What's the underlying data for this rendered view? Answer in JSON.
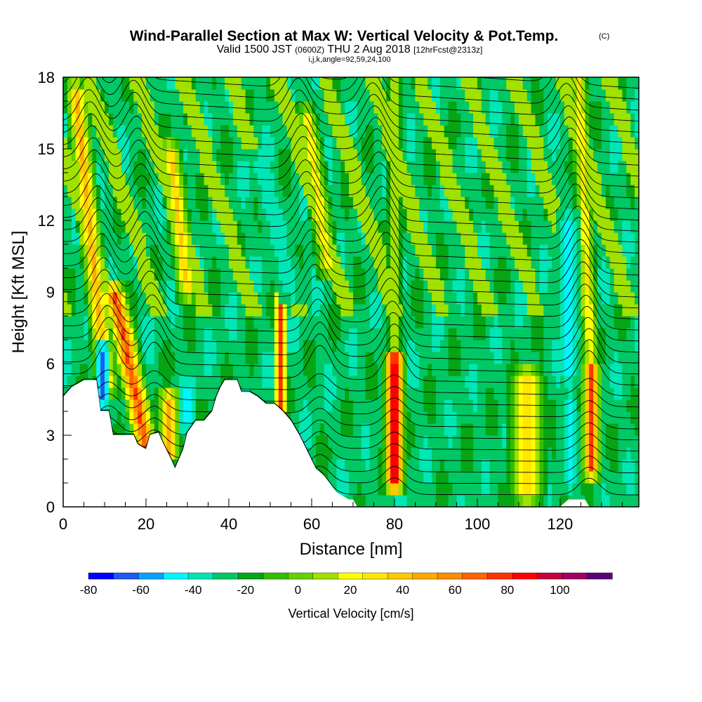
{
  "title": {
    "main": "Wind-Parallel Section at Max W: Vertical Velocity & Pot.Temp.",
    "copyright": "(C)",
    "valid_prefix": "Valid 1500 JST",
    "valid_z": "(0600Z)",
    "valid_date": "THU 2 Aug 2018",
    "forecast": "[12hrFcst@2313z]",
    "indices": "i,j,k,angle=92,59,24,100"
  },
  "chart_data": {
    "type": "heatmap",
    "xlabel": "Distance [nm]",
    "ylabel": "Height [Kft MSL]",
    "xlim": [
      0,
      139
    ],
    "ylim": [
      0,
      18
    ],
    "x_ticks": [
      0,
      20,
      40,
      60,
      80,
      100,
      120
    ],
    "y_ticks": [
      0,
      3,
      6,
      9,
      12,
      15,
      18
    ],
    "x_tick_labels": [
      "0",
      "20",
      "40",
      "60",
      "80",
      "100",
      "120"
    ],
    "y_tick_labels": [
      "0",
      "3",
      "6",
      "9",
      "12",
      "15",
      "18"
    ],
    "grid": false,
    "background_level": 5,
    "updraft_bands": [
      {
        "x_base": 20,
        "z_bottom": 2.6,
        "z_top": 9,
        "tilt": -1.2,
        "width": 2.3,
        "level": 16
      },
      {
        "x_base": 10.5,
        "z_bottom": 5,
        "z_top": 17.5,
        "tilt": -0.6,
        "width": 2.0,
        "level": 13
      },
      {
        "x_base": 25.5,
        "z_bottom": 2.2,
        "z_top": 4.6,
        "tilt": 0,
        "width": 2.2,
        "level": 13
      },
      {
        "x_base": 30,
        "z_bottom": 9,
        "z_top": 15,
        "tilt": -0.7,
        "width": 2.0,
        "level": 12
      },
      {
        "x_base": 52.5,
        "z_bottom": 4,
        "z_top": 9.8,
        "tilt": 0,
        "width": 1.1,
        "level": 16
      },
      {
        "x_base": 64,
        "z_bottom": 10,
        "z_top": 16.5,
        "tilt": -0.8,
        "width": 2.0,
        "level": 11
      },
      {
        "x_base": 80,
        "z_bottom": 1.0,
        "z_top": 6.2,
        "tilt": 0,
        "width": 1.9,
        "level": 19
      },
      {
        "x_base": 80,
        "z_bottom": 6,
        "z_top": 17.8,
        "tilt": 0,
        "width": 1.2,
        "level": 11
      },
      {
        "x_base": 112,
        "z_bottom": 0.5,
        "z_top": 5.5,
        "tilt": 0,
        "width": 3.2,
        "level": 12
      },
      {
        "x_base": 127.5,
        "z_bottom": 1.5,
        "z_top": 5.8,
        "tilt": 0,
        "width": 1.7,
        "level": 16
      },
      {
        "x_base": 127.5,
        "z_bottom": 5.8,
        "z_top": 17.8,
        "tilt": -0.25,
        "width": 1.6,
        "level": 11
      }
    ],
    "downdraft_bands": [
      {
        "x_base": 9.5,
        "z_bottom": 4.5,
        "z_top": 6.5,
        "tilt": 0,
        "width": 1.2,
        "level": 1
      },
      {
        "x_base": 30,
        "z_bottom": 3.5,
        "z_top": 5,
        "tilt": 0,
        "width": 1.4,
        "level": 2
      },
      {
        "x_base": 55,
        "z_bottom": 9,
        "z_top": 14.5,
        "tilt": -1.3,
        "width": 2.2,
        "level": 4
      },
      {
        "x_base": 122.5,
        "z_bottom": 1,
        "z_top": 4.5,
        "tilt": 0,
        "width": 1.0,
        "level": 3
      },
      {
        "x_base": 122,
        "z_bottom": 5.5,
        "z_top": 12,
        "tilt": 0,
        "width": 1.6,
        "level": 3
      }
    ],
    "terrain_height_kft": [
      [
        0,
        4.6
      ],
      [
        2,
        5.0
      ],
      [
        5,
        5.3
      ],
      [
        8,
        5.3
      ],
      [
        9,
        4.0
      ],
      [
        11,
        4.0
      ],
      [
        12,
        3.0
      ],
      [
        13,
        3.0
      ],
      [
        14,
        3.0
      ],
      [
        17,
        3.0
      ],
      [
        18,
        2.6
      ],
      [
        20,
        2.4
      ],
      [
        21,
        3.0
      ],
      [
        23,
        3.1
      ],
      [
        24,
        2.7
      ],
      [
        26,
        2.0
      ],
      [
        27,
        1.6
      ],
      [
        28,
        2.0
      ],
      [
        29,
        2.4
      ],
      [
        30,
        3.1
      ],
      [
        32,
        3.6
      ],
      [
        34,
        3.6
      ],
      [
        36,
        4.0
      ],
      [
        37,
        4.6
      ],
      [
        38,
        5.0
      ],
      [
        39,
        5.3
      ],
      [
        42,
        5.3
      ],
      [
        43,
        4.8
      ],
      [
        45,
        4.8
      ],
      [
        47,
        4.6
      ],
      [
        49,
        4.3
      ],
      [
        51,
        4.3
      ],
      [
        53,
        4.0
      ],
      [
        55,
        3.6
      ],
      [
        57,
        3.0
      ],
      [
        59,
        2.3
      ],
      [
        61,
        1.6
      ],
      [
        63,
        1.3
      ],
      [
        66,
        0.6
      ],
      [
        69,
        0.3
      ],
      [
        70,
        0.3
      ],
      [
        71,
        0.0
      ],
      [
        120,
        0.0
      ],
      [
        122,
        0.3
      ],
      [
        126,
        0.3
      ],
      [
        127,
        0.0
      ],
      [
        139,
        0.0
      ]
    ],
    "colorbar": {
      "title": "Vertical Velocity [cm/s]",
      "min": -80,
      "max": 110,
      "step": 10,
      "tick_values": [
        -80,
        -60,
        -40,
        -20,
        0,
        20,
        40,
        60,
        80,
        100
      ],
      "tick_labels": [
        "-80",
        "-60",
        "-40",
        "-20",
        "0",
        "20",
        "40",
        "60",
        "80",
        "100"
      ],
      "colors": [
        "#0000ff",
        "#1e5af0",
        "#0aa0ff",
        "#00f5ff",
        "#00e6b4",
        "#00c864",
        "#05a514",
        "#32be00",
        "#64d200",
        "#a0e100",
        "#ffff00",
        "#ffe600",
        "#ffc800",
        "#ffaa00",
        "#ff8c00",
        "#ff6400",
        "#ff3200",
        "#ff0000",
        "#c8003c",
        "#a00064",
        "#5a0078"
      ]
    },
    "theta_contours": {
      "levels": 38,
      "color": "#000000",
      "ridge_positions_nm": [
        11,
        22,
        62,
        80,
        127
      ]
    }
  }
}
